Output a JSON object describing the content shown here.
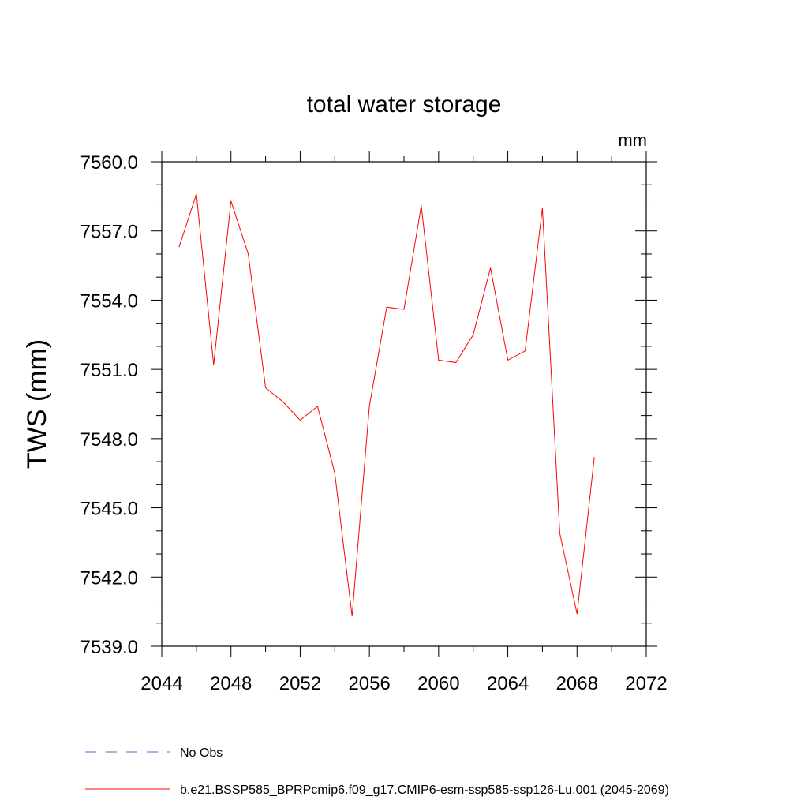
{
  "chart_data": {
    "type": "line",
    "title": "total water storage",
    "units_label": "mm",
    "xlabel": "",
    "ylabel": "TWS  (mm)",
    "xlim": [
      2044,
      2072
    ],
    "ylim": [
      7539.0,
      7560.0
    ],
    "x_ticks": [
      2044,
      2048,
      2052,
      2056,
      2060,
      2064,
      2068,
      2072
    ],
    "x_tick_labels": [
      "2044",
      "2048",
      "2052",
      "2056",
      "2060",
      "2064",
      "2068",
      "2072"
    ],
    "y_ticks": [
      7539.0,
      7542.0,
      7545.0,
      7548.0,
      7551.0,
      7554.0,
      7557.0,
      7560.0
    ],
    "y_tick_labels": [
      "7539.0",
      "7542.0",
      "7545.0",
      "7548.0",
      "7551.0",
      "7554.0",
      "7557.0",
      "7560.0"
    ],
    "grid": false,
    "legend_position": "bottom",
    "series": [
      {
        "name": "b.e21.BSSP585_BPRPcmip6.f09_g17.CMIP6-esm-ssp585-ssp126-Lu.001 (2045-2069)",
        "color": "#ff0000",
        "x": [
          2045,
          2046,
          2047,
          2048,
          2049,
          2050,
          2051,
          2052,
          2053,
          2054,
          2055,
          2056,
          2057,
          2058,
          2059,
          2060,
          2061,
          2062,
          2063,
          2064,
          2065,
          2066,
          2067,
          2068,
          2069
        ],
        "values": [
          7556.3,
          7558.6,
          7551.2,
          7558.3,
          7556.0,
          7550.2,
          7549.6,
          7548.8,
          7549.4,
          7546.5,
          7540.3,
          7549.4,
          7553.7,
          7553.6,
          7558.1,
          7551.4,
          7551.3,
          7552.5,
          7555.4,
          7551.4,
          7551.8,
          7558.0,
          7543.9,
          7540.4,
          7547.2
        ]
      }
    ],
    "legend": [
      {
        "label": "No Obs",
        "color": "#6a5acd",
        "style": "dashed"
      },
      {
        "label": "b.e21.BSSP585_BPRPcmip6.f09_g17.CMIP6-esm-ssp585-ssp126-Lu.001 (2045-2069)",
        "color": "#ff0000",
        "style": "solid"
      }
    ]
  }
}
